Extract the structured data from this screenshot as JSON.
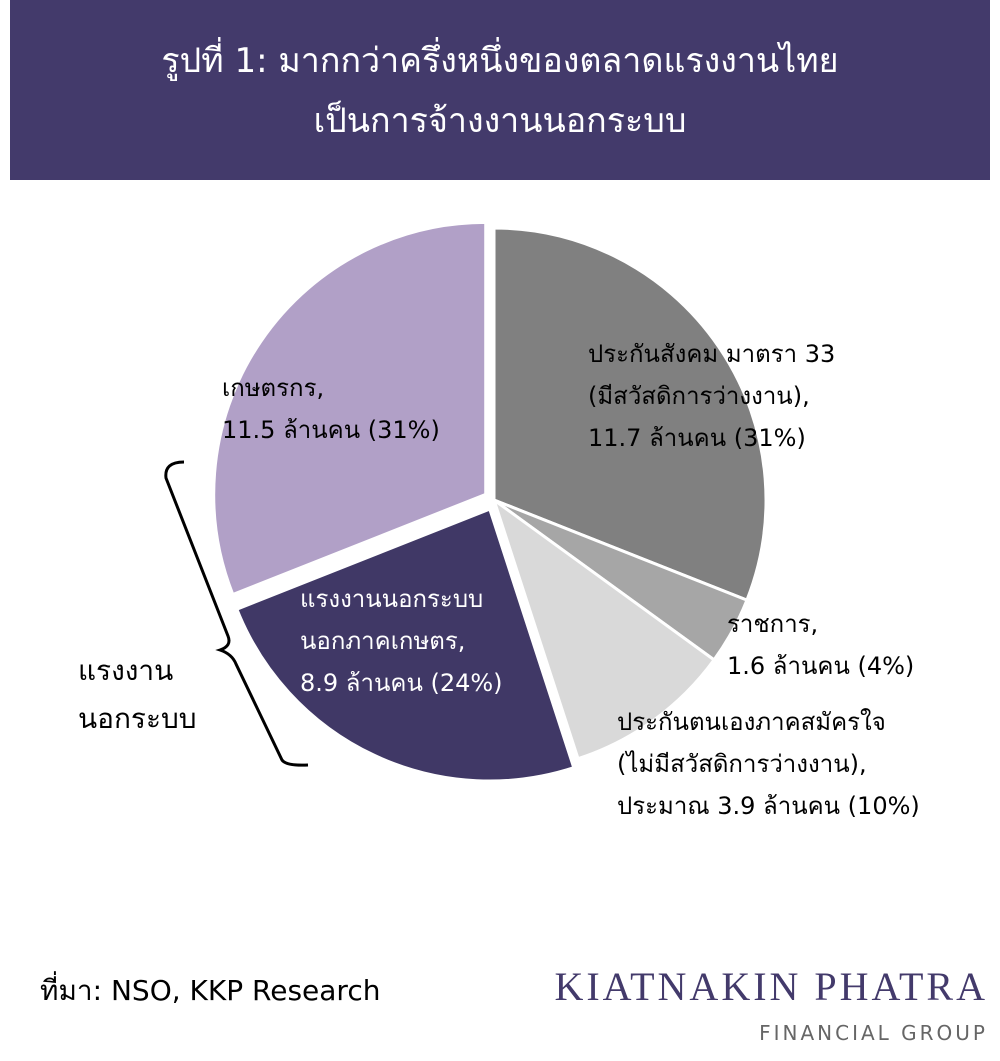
{
  "chart_data": {
    "type": "pie",
    "title": [
      "รูปที่ 1: มากกว่าครึ่งหนึ่งของตลาดแรงงานไทย",
      "เป็นการจ้างงานนอกระบบ"
    ],
    "categories": [
      [
        "ประกันสังคม มาตรา 33",
        "(มีสวัสดิการว่างงาน),",
        "11.7 ล้านคน (31%)"
      ],
      [
        "ราชการ,",
        "1.6 ล้านคน (4%)"
      ],
      [
        "ประกันตนเองภาคสมัครใจ",
        "(ไม่มีสวัสดิการว่างงาน),",
        "ประมาณ 3.9 ล้านคน (10%)"
      ],
      [
        "แรงงานนอกระบบ",
        "นอกภาคเกษตร,",
        "8.9 ล้านคน (24%)"
      ],
      [
        "เกษตรกร,",
        "11.5 ล้านคน (31%)"
      ]
    ],
    "values": [
      31,
      4,
      10,
      24,
      31
    ],
    "colors": [
      "#808080",
      "#a6a6a6",
      "#d9d9d9",
      "#403866",
      "#b1a0c7"
    ],
    "exploded": [
      3,
      4
    ],
    "bracket_label": [
      "แรงงาน",
      "นอกระบบ"
    ],
    "source": "ที่มา: NSO, KKP Research",
    "logo": [
      "KIATNAKIN PHATRA",
      "FINANCIAL GROUP"
    ]
  }
}
